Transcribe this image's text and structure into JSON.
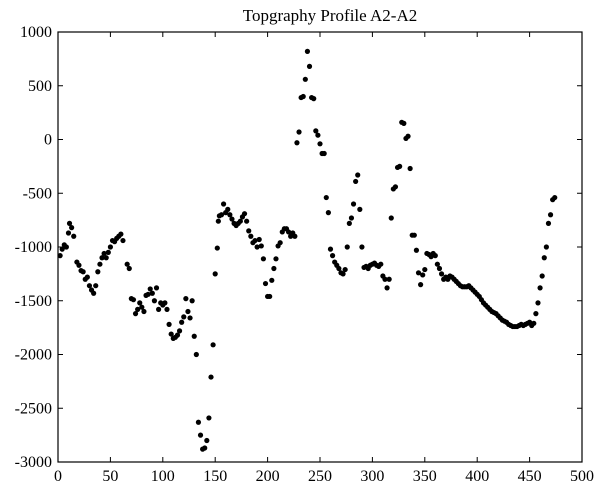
{
  "chart_data": {
    "type": "scatter",
    "title": "Topgraphy Profile A2-A2",
    "xlabel": "",
    "ylabel": "",
    "xlim": [
      0,
      500
    ],
    "ylim": [
      -3000,
      1000
    ],
    "x_ticks": [
      0,
      50,
      100,
      150,
      200,
      250,
      300,
      350,
      400,
      450,
      500
    ],
    "y_ticks": [
      1000,
      500,
      0,
      -500,
      -1000,
      -1500,
      -2000,
      -2500,
      -3000
    ],
    "x_tick_labels": [
      "0",
      "50",
      "100",
      "150",
      "200",
      "250",
      "300",
      "350",
      "400",
      "450",
      "500"
    ],
    "y_tick_labels": [
      "1000",
      "500",
      "0",
      "-500",
      "-1000",
      "-1500",
      "-2000",
      "-2500",
      "-3000"
    ],
    "grid": false,
    "marker_color": "#000000",
    "series": [
      {
        "points": [
          [
            2,
            -1080
          ],
          [
            4,
            -1020
          ],
          [
            6,
            -980
          ],
          [
            8,
            -1000
          ],
          [
            10,
            -870
          ],
          [
            11,
            -780
          ],
          [
            13,
            -820
          ],
          [
            15,
            -900
          ],
          [
            18,
            -1140
          ],
          [
            20,
            -1170
          ],
          [
            22,
            -1220
          ],
          [
            24,
            -1230
          ],
          [
            26,
            -1300
          ],
          [
            28,
            -1280
          ],
          [
            30,
            -1360
          ],
          [
            32,
            -1400
          ],
          [
            34,
            -1430
          ],
          [
            36,
            -1360
          ],
          [
            38,
            -1230
          ],
          [
            40,
            -1160
          ],
          [
            42,
            -1100
          ],
          [
            44,
            -1060
          ],
          [
            46,
            -1100
          ],
          [
            48,
            -1050
          ],
          [
            50,
            -1000
          ],
          [
            52,
            -940
          ],
          [
            54,
            -950
          ],
          [
            56,
            -920
          ],
          [
            58,
            -900
          ],
          [
            60,
            -880
          ],
          [
            62,
            -940
          ],
          [
            66,
            -1160
          ],
          [
            68,
            -1200
          ],
          [
            70,
            -1480
          ],
          [
            72,
            -1490
          ],
          [
            74,
            -1620
          ],
          [
            76,
            -1580
          ],
          [
            78,
            -1520
          ],
          [
            80,
            -1560
          ],
          [
            82,
            -1600
          ],
          [
            84,
            -1450
          ],
          [
            86,
            -1440
          ],
          [
            88,
            -1390
          ],
          [
            90,
            -1430
          ],
          [
            92,
            -1500
          ],
          [
            94,
            -1380
          ],
          [
            96,
            -1580
          ],
          [
            98,
            -1520
          ],
          [
            100,
            -1540
          ],
          [
            102,
            -1520
          ],
          [
            104,
            -1580
          ],
          [
            106,
            -1720
          ],
          [
            108,
            -1810
          ],
          [
            110,
            -1850
          ],
          [
            112,
            -1840
          ],
          [
            114,
            -1820
          ],
          [
            116,
            -1780
          ],
          [
            118,
            -1700
          ],
          [
            120,
            -1650
          ],
          [
            122,
            -1480
          ],
          [
            124,
            -1600
          ],
          [
            126,
            -1660
          ],
          [
            128,
            -1500
          ],
          [
            130,
            -1830
          ],
          [
            132,
            -2000
          ],
          [
            134,
            -2630
          ],
          [
            136,
            -2750
          ],
          [
            138,
            -2880
          ],
          [
            140,
            -2870
          ],
          [
            142,
            -2800
          ],
          [
            144,
            -2590
          ],
          [
            146,
            -2210
          ],
          [
            148,
            -1910
          ],
          [
            150,
            -1250
          ],
          [
            152,
            -1010
          ],
          [
            153,
            -760
          ],
          [
            154,
            -710
          ],
          [
            156,
            -700
          ],
          [
            158,
            -600
          ],
          [
            160,
            -680
          ],
          [
            162,
            -650
          ],
          [
            164,
            -700
          ],
          [
            166,
            -740
          ],
          [
            168,
            -780
          ],
          [
            170,
            -800
          ],
          [
            172,
            -780
          ],
          [
            174,
            -760
          ],
          [
            176,
            -720
          ],
          [
            178,
            -690
          ],
          [
            180,
            -760
          ],
          [
            182,
            -850
          ],
          [
            184,
            -900
          ],
          [
            186,
            -960
          ],
          [
            188,
            -940
          ],
          [
            190,
            -1000
          ],
          [
            192,
            -930
          ],
          [
            194,
            -990
          ],
          [
            196,
            -1110
          ],
          [
            198,
            -1340
          ],
          [
            200,
            -1460
          ],
          [
            202,
            -1460
          ],
          [
            204,
            -1310
          ],
          [
            206,
            -1200
          ],
          [
            208,
            -1110
          ],
          [
            210,
            -990
          ],
          [
            212,
            -960
          ],
          [
            214,
            -860
          ],
          [
            216,
            -830
          ],
          [
            218,
            -830
          ],
          [
            220,
            -860
          ],
          [
            222,
            -900
          ],
          [
            224,
            -870
          ],
          [
            226,
            -900
          ],
          [
            228,
            -30
          ],
          [
            230,
            70
          ],
          [
            232,
            390
          ],
          [
            234,
            400
          ],
          [
            236,
            560
          ],
          [
            238,
            820
          ],
          [
            240,
            680
          ],
          [
            242,
            390
          ],
          [
            244,
            380
          ],
          [
            246,
            80
          ],
          [
            248,
            40
          ],
          [
            250,
            -40
          ],
          [
            252,
            -130
          ],
          [
            254,
            -130
          ],
          [
            256,
            -540
          ],
          [
            258,
            -680
          ],
          [
            260,
            -1020
          ],
          [
            262,
            -1080
          ],
          [
            264,
            -1140
          ],
          [
            266,
            -1170
          ],
          [
            268,
            -1200
          ],
          [
            270,
            -1240
          ],
          [
            272,
            -1250
          ],
          [
            274,
            -1210
          ],
          [
            276,
            -1000
          ],
          [
            278,
            -780
          ],
          [
            280,
            -730
          ],
          [
            282,
            -600
          ],
          [
            284,
            -390
          ],
          [
            286,
            -330
          ],
          [
            288,
            -650
          ],
          [
            290,
            -1000
          ],
          [
            292,
            -1190
          ],
          [
            294,
            -1180
          ],
          [
            296,
            -1200
          ],
          [
            298,
            -1170
          ],
          [
            300,
            -1160
          ],
          [
            302,
            -1150
          ],
          [
            304,
            -1170
          ],
          [
            306,
            -1180
          ],
          [
            308,
            -1160
          ],
          [
            310,
            -1270
          ],
          [
            312,
            -1300
          ],
          [
            314,
            -1380
          ],
          [
            316,
            -1300
          ],
          [
            318,
            -730
          ],
          [
            320,
            -460
          ],
          [
            322,
            -440
          ],
          [
            324,
            -260
          ],
          [
            326,
            -250
          ],
          [
            328,
            160
          ],
          [
            330,
            150
          ],
          [
            332,
            10
          ],
          [
            334,
            30
          ],
          [
            336,
            -270
          ],
          [
            338,
            -890
          ],
          [
            340,
            -890
          ],
          [
            342,
            -1030
          ],
          [
            344,
            -1240
          ],
          [
            346,
            -1350
          ],
          [
            348,
            -1260
          ],
          [
            350,
            -1210
          ],
          [
            352,
            -1060
          ],
          [
            354,
            -1070
          ],
          [
            356,
            -1090
          ],
          [
            358,
            -1060
          ],
          [
            360,
            -1080
          ],
          [
            362,
            -1160
          ],
          [
            364,
            -1200
          ],
          [
            366,
            -1250
          ],
          [
            368,
            -1300
          ],
          [
            370,
            -1280
          ],
          [
            372,
            -1300
          ],
          [
            374,
            -1270
          ],
          [
            376,
            -1280
          ],
          [
            378,
            -1300
          ],
          [
            380,
            -1320
          ],
          [
            382,
            -1340
          ],
          [
            384,
            -1360
          ],
          [
            386,
            -1370
          ],
          [
            388,
            -1370
          ],
          [
            390,
            -1370
          ],
          [
            392,
            -1360
          ],
          [
            394,
            -1380
          ],
          [
            396,
            -1400
          ],
          [
            398,
            -1420
          ],
          [
            400,
            -1440
          ],
          [
            402,
            -1460
          ],
          [
            404,
            -1490
          ],
          [
            406,
            -1520
          ],
          [
            408,
            -1540
          ],
          [
            410,
            -1560
          ],
          [
            412,
            -1580
          ],
          [
            414,
            -1600
          ],
          [
            416,
            -1610
          ],
          [
            418,
            -1620
          ],
          [
            420,
            -1640
          ],
          [
            422,
            -1660
          ],
          [
            424,
            -1680
          ],
          [
            426,
            -1690
          ],
          [
            428,
            -1700
          ],
          [
            430,
            -1720
          ],
          [
            432,
            -1730
          ],
          [
            434,
            -1740
          ],
          [
            436,
            -1740
          ],
          [
            438,
            -1740
          ],
          [
            440,
            -1730
          ],
          [
            442,
            -1720
          ],
          [
            444,
            -1730
          ],
          [
            446,
            -1720
          ],
          [
            448,
            -1710
          ],
          [
            450,
            -1700
          ],
          [
            452,
            -1730
          ],
          [
            454,
            -1710
          ],
          [
            456,
            -1620
          ],
          [
            458,
            -1520
          ],
          [
            460,
            -1380
          ],
          [
            462,
            -1270
          ],
          [
            464,
            -1100
          ],
          [
            466,
            -1000
          ],
          [
            468,
            -780
          ],
          [
            470,
            -700
          ],
          [
            472,
            -560
          ],
          [
            474,
            -540
          ]
        ]
      }
    ]
  }
}
